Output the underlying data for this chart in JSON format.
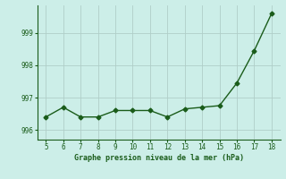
{
  "x": [
    5,
    6,
    7,
    8,
    9,
    10,
    11,
    12,
    13,
    14,
    15,
    16,
    17,
    18
  ],
  "y": [
    996.4,
    996.7,
    996.4,
    996.4,
    996.6,
    996.6,
    996.6,
    996.4,
    996.65,
    996.7,
    996.75,
    997.45,
    998.45,
    999.6
  ],
  "line_color": "#1a5c1a",
  "marker": "D",
  "marker_size": 2.5,
  "linewidth": 1.0,
  "xlabel": "Graphe pression niveau de la mer (hPa)",
  "yticks": [
    996,
    997,
    998,
    999
  ],
  "xticks": [
    5,
    6,
    7,
    8,
    9,
    10,
    11,
    12,
    13,
    14,
    15,
    16,
    17,
    18
  ],
  "ylim": [
    995.7,
    999.85
  ],
  "xlim": [
    4.5,
    18.5
  ],
  "bg_color": "#cceee8",
  "grid_color": "#b0cec8"
}
